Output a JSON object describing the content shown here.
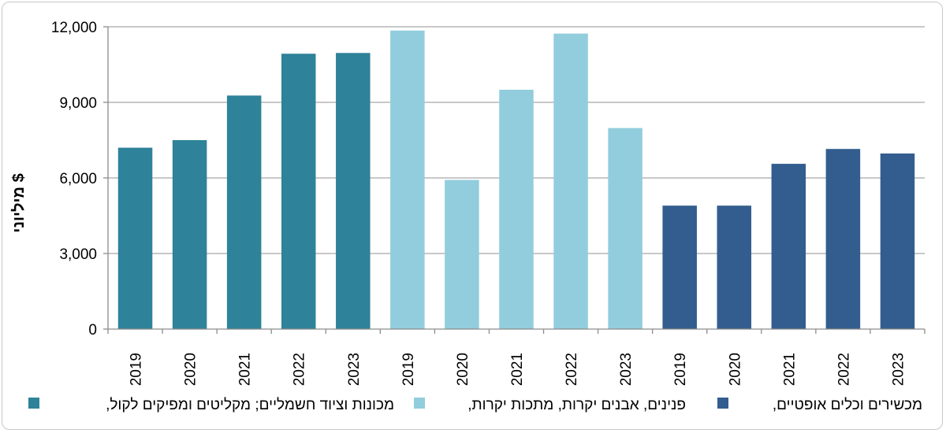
{
  "chart_data": {
    "type": "bar",
    "title": "",
    "ylabel": "מיליוני $",
    "ylim": [
      0,
      12000
    ],
    "yticks": [
      "0",
      "3,000",
      "6,000",
      "9,000",
      "12,000"
    ],
    "ytick_values": [
      0,
      3000,
      6000,
      9000,
      12000
    ],
    "grid": true,
    "legend_position": "bottom",
    "categories": [
      "2019",
      "2020",
      "2021",
      "2022",
      "2023"
    ],
    "series": [
      {
        "name": "מכונות וציוד חשמליים; מקליטים ומפיקים לקול,",
        "color": "#2e8299",
        "values": [
          7200,
          7500,
          9270,
          10930,
          10960
        ]
      },
      {
        "name": "פנינים, אבנים יקרות, מתכות יקרות,",
        "color": "#92cddd",
        "values": [
          11850,
          5920,
          9500,
          11730,
          7980
        ]
      },
      {
        "name": "מכשירים וכלים אופטיים,",
        "color": "#335d8e",
        "values": [
          4900,
          4900,
          6560,
          7150,
          6970
        ]
      }
    ]
  }
}
